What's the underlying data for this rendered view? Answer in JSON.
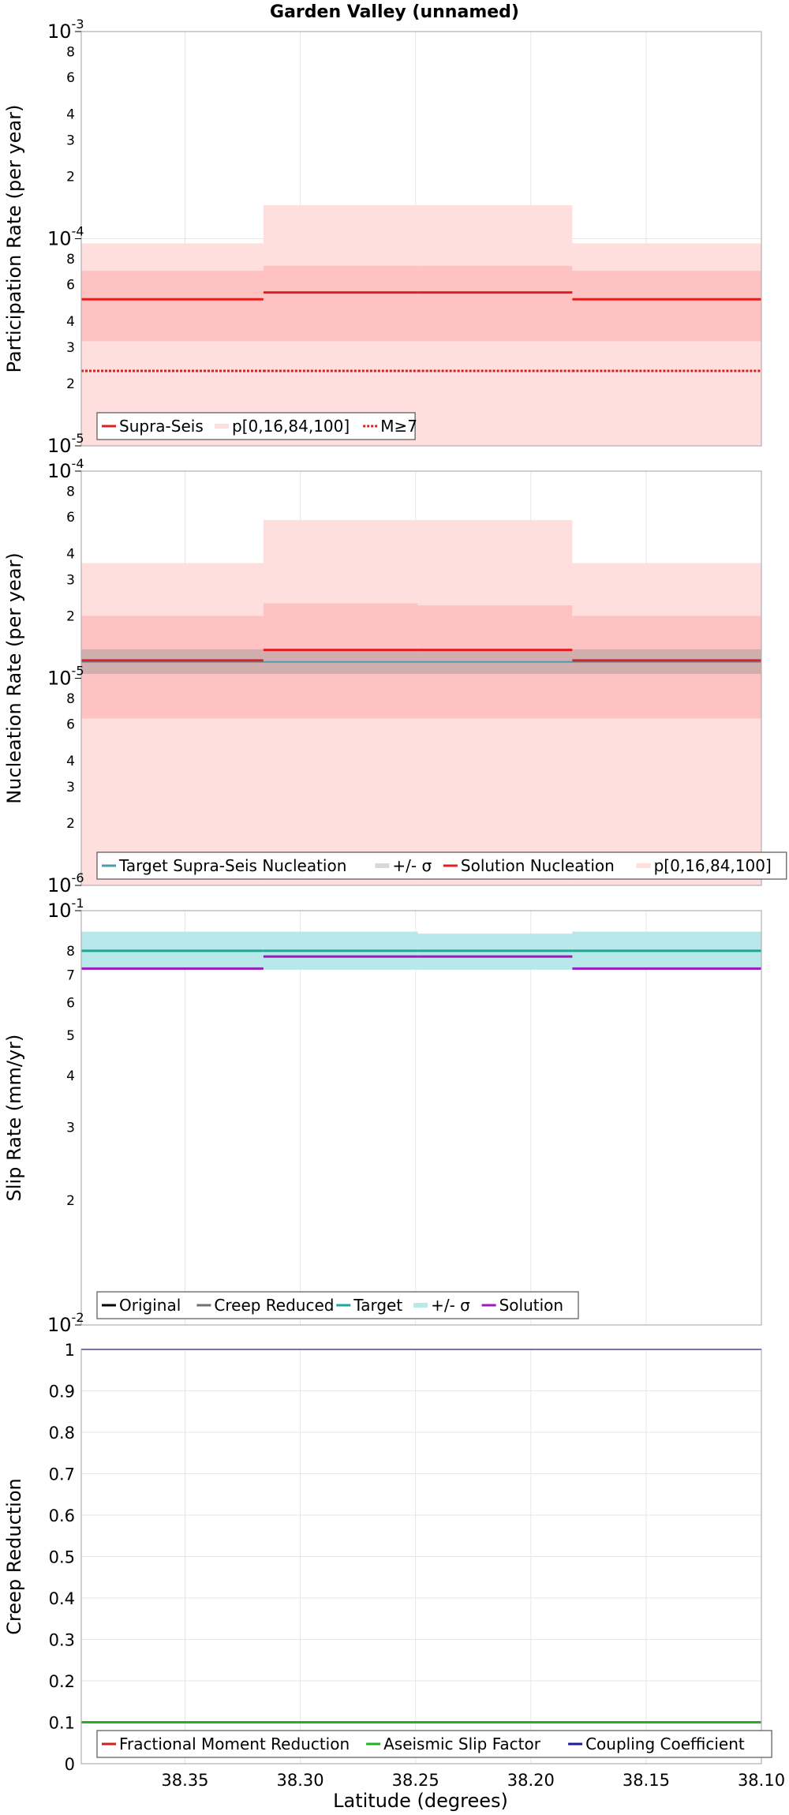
{
  "title": "Garden Valley (unnamed)",
  "xlabel": "Latitude (degrees)",
  "x_ticks": [
    "38.35",
    "38.30",
    "38.25",
    "38.20",
    "38.15",
    "38.10"
  ],
  "chart_data": [
    {
      "type": "line",
      "name": "participation",
      "ylabel": "Participation Rate (per year)",
      "yscale": "log",
      "ylim": [
        1e-05,
        0.001
      ],
      "x_reversed": true,
      "xlim": [
        38.395,
        38.1
      ],
      "segments_x": [
        [
          38.395,
          38.316
        ],
        [
          38.316,
          38.249
        ],
        [
          38.249,
          38.182
        ],
        [
          38.182,
          38.1
        ]
      ],
      "series": [
        {
          "name": "Supra-Seis",
          "color": "#e02020",
          "values": [
            5.1e-05,
            5.5e-05,
            5.5e-05,
            5.1e-05
          ]
        },
        {
          "name": "p[0,16,84,100]",
          "color": "#ffaaaa",
          "p0": [
            1e-05,
            1e-05,
            1e-05,
            1e-05
          ],
          "p16": [
            3.2e-05,
            3.2e-05,
            3.2e-05,
            3.2e-05
          ],
          "p84": [
            7e-05,
            7.4e-05,
            7.4e-05,
            7e-05
          ],
          "p100": [
            9.5e-05,
            0.000145,
            0.000145,
            9.5e-05
          ]
        },
        {
          "name": "M≥7",
          "color": "#d02020",
          "values": [
            2.3e-05,
            2.3e-05,
            2.3e-05,
            2.3e-05
          ]
        }
      ],
      "legend": [
        "Supra-Seis",
        "p[0,16,84,100]",
        "M≥7"
      ],
      "legend_loc": "lower-left",
      "yticks_major": [
        "10",
        "10"
      ],
      "ytick_exps": [
        "-5",
        "-4",
        "-3"
      ],
      "yticks_minor": [
        "2",
        "3",
        "4",
        "6",
        "8"
      ]
    },
    {
      "type": "line",
      "name": "nucleation",
      "ylabel": "Nucleation Rate (per year)",
      "yscale": "log",
      "ylim": [
        1e-06,
        0.0001
      ],
      "segments_x": [
        [
          38.395,
          38.316
        ],
        [
          38.316,
          38.249
        ],
        [
          38.249,
          38.182
        ],
        [
          38.182,
          38.1
        ]
      ],
      "series": [
        {
          "name": "Target Supra-Seis Nucleation",
          "color": "#4a9db0",
          "values": [
            1.2e-05,
            1.2e-05,
            1.2e-05,
            1.2e-05
          ]
        },
        {
          "name": "+/- σ",
          "color": "#b0b0b0",
          "lower": [
            1.05e-05,
            1.05e-05,
            1.05e-05,
            1.05e-05
          ],
          "upper": [
            1.38e-05,
            1.38e-05,
            1.38e-05,
            1.38e-05
          ]
        },
        {
          "name": "Solution Nucleation",
          "color": "#e02020",
          "values": [
            1.22e-05,
            1.37e-05,
            1.37e-05,
            1.22e-05
          ]
        },
        {
          "name": "p[0,16,84,100]",
          "color": "#ffaaaa",
          "p0": [
            1e-06,
            1e-06,
            1e-06,
            1e-06
          ],
          "p16": [
            6.4e-06,
            6.4e-06,
            6.4e-06,
            6.4e-06
          ],
          "p84": [
            2e-05,
            2.3e-05,
            2.25e-05,
            2e-05
          ],
          "p100": [
            3.6e-05,
            5.8e-05,
            5.8e-05,
            3.6e-05
          ]
        }
      ],
      "legend": [
        "Target Supra-Seis Nucleation",
        "+/- σ",
        "Solution Nucleation",
        "p[0,16,84,100]"
      ],
      "legend_loc": "lower-left",
      "ytick_exps": [
        "-6",
        "-5",
        "-4"
      ],
      "yticks_minor": [
        "2",
        "3",
        "4",
        "6",
        "8"
      ]
    },
    {
      "type": "line",
      "name": "sliprate",
      "ylabel": "Slip Rate (mm/yr)",
      "yscale": "log",
      "ylim": [
        0.01,
        0.1
      ],
      "segments_x": [
        [
          38.395,
          38.316
        ],
        [
          38.316,
          38.249
        ],
        [
          38.249,
          38.182
        ],
        [
          38.182,
          38.1
        ]
      ],
      "series": [
        {
          "name": "Original",
          "color": "#000000",
          "values": []
        },
        {
          "name": "Creep Reduced",
          "color": "#707070",
          "values": []
        },
        {
          "name": "Target",
          "color": "#1aa89a",
          "values": [
            0.08,
            0.08,
            0.08,
            0.08
          ]
        },
        {
          "name": "+/- σ",
          "color": "#b8e8ea",
          "lower": [
            0.072,
            0.072,
            0.072,
            0.072
          ],
          "upper": [
            0.089,
            0.089,
            0.088,
            0.089
          ]
        },
        {
          "name": "Solution",
          "color": "#9a1ac0",
          "values": [
            0.0725,
            0.0775,
            0.0775,
            0.0725
          ]
        }
      ],
      "legend": [
        "Original",
        "Creep Reduced",
        "Target",
        "+/- σ",
        "Solution"
      ],
      "legend_loc": "lower-left",
      "ytick_exps": [
        "-2",
        "-1"
      ],
      "yticks_minor": [
        "2",
        "3",
        "4",
        "5",
        "6",
        "7",
        "8"
      ]
    },
    {
      "type": "line",
      "name": "creep",
      "ylabel": "Creep Reduction",
      "yscale": "linear",
      "ylim": [
        0,
        1
      ],
      "series": [
        {
          "name": "Fractional Moment Reduction",
          "color": "#d02020",
          "values": []
        },
        {
          "name": "Aseismic Slip Factor",
          "color": "#20b020",
          "values": [
            0.1,
            0.1,
            0.1,
            0.1
          ]
        },
        {
          "name": "Coupling Coefficient",
          "color": "#1a1a9a",
          "values": [
            1.0,
            1.0,
            1.0,
            1.0
          ]
        }
      ],
      "legend": [
        "Fractional Moment Reduction",
        "Aseismic Slip Factor",
        "Coupling Coefficient"
      ],
      "legend_loc": "lower-left",
      "yticks": [
        "0",
        "0.1",
        "0.2",
        "0.3",
        "0.4",
        "0.5",
        "0.6",
        "0.7",
        "0.8",
        "0.9",
        "1"
      ]
    }
  ]
}
